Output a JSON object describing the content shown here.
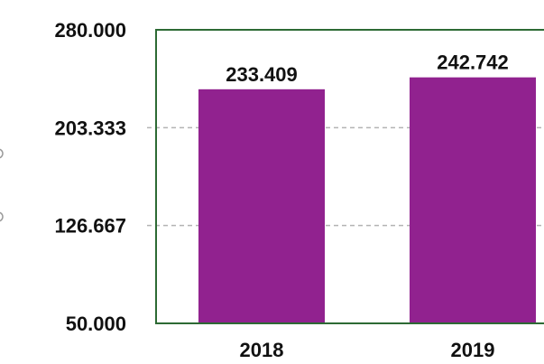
{
  "colors": {
    "bar": "#91228f",
    "frame": "#2d6a34",
    "grid": "#b3b3b3",
    "text": "#111111"
  },
  "chart_data": {
    "type": "bar",
    "categories": [
      "2018",
      "2019"
    ],
    "values": [
      233.409,
      242.742
    ],
    "data_labels": [
      "233.409",
      "242.742"
    ],
    "ylim": [
      50.0,
      280.0
    ],
    "y_ticks": [
      50.0,
      126.667,
      203.333,
      280.0
    ],
    "y_tick_labels": [
      "50.000",
      "126.667",
      "203.333",
      "280.000"
    ],
    "title": "",
    "xlabel": "",
    "ylabel": "",
    "grid": true
  }
}
